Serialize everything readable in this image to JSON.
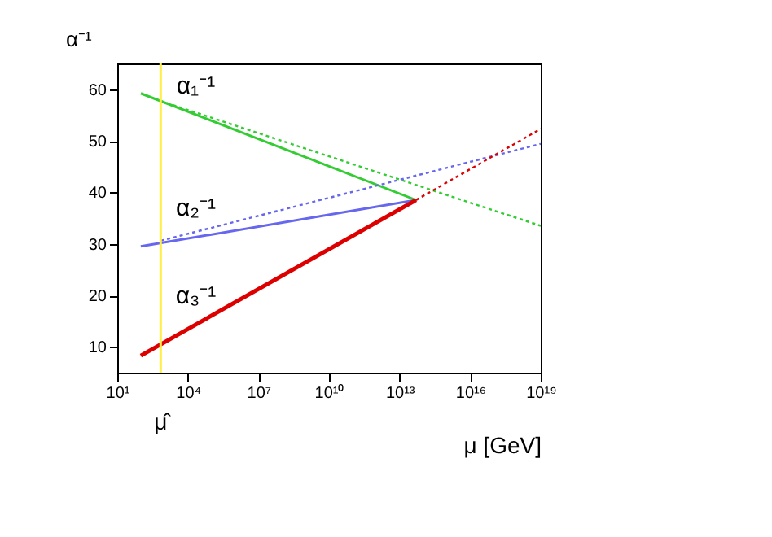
{
  "chart_data": {
    "type": "line",
    "xlabel": "μ [GeV]",
    "ylabel": "α⁻¹",
    "log": "x",
    "grid": false,
    "xlim": [
      10,
      1e+19
    ],
    "ylim": [
      5,
      65
    ],
    "xticks": [
      {
        "value": 10,
        "label": "10¹"
      },
      {
        "value": 10000.0,
        "label": "10⁴"
      },
      {
        "value": 10000000.0,
        "label": "10⁷"
      },
      {
        "value": 10000000000.0,
        "label": "10¹⁰"
      },
      {
        "value": 10000000000000.0,
        "label": "10¹³"
      },
      {
        "value": 1e+16,
        "label": "10¹⁶"
      },
      {
        "value": 1e+19,
        "label": "10¹⁹"
      }
    ],
    "yticks": [
      10,
      20,
      30,
      40,
      50,
      60
    ],
    "series": [
      {
        "name": "α₁⁻¹",
        "color": "#33cc33",
        "x": [
          100,
          50000000000000.0
        ],
        "values": [
          59.2,
          38.5
        ],
        "line_style": "solid"
      },
      {
        "name": "α₂⁻¹",
        "color": "#6666ee",
        "x": [
          100,
          50000000000000.0
        ],
        "values": [
          29.5,
          38.5
        ],
        "line_style": "solid"
      },
      {
        "name": "α₃⁻¹",
        "color": "#dd0000",
        "x": [
          100,
          50000000000000.0
        ],
        "values": [
          8.3,
          38.5
        ],
        "line_style": "solid"
      },
      {
        "color": "#33cc33",
        "x": [
          700,
          1e+19
        ],
        "values": [
          57.7,
          33.5
        ],
        "line_style": "dotted"
      },
      {
        "color": "#6666ee",
        "x": [
          700,
          1e+19
        ],
        "values": [
          30.6,
          49.4
        ],
        "line_style": "dotted"
      },
      {
        "color": "#dd0000",
        "x": [
          50000000000000.0,
          1e+19
        ],
        "values": [
          38.5,
          52.3
        ],
        "line_style": "dotted"
      }
    ],
    "ref_lines": [
      {
        "axis": "x",
        "value": 700,
        "label": "μ̂",
        "color": "#ffee44"
      }
    ]
  }
}
